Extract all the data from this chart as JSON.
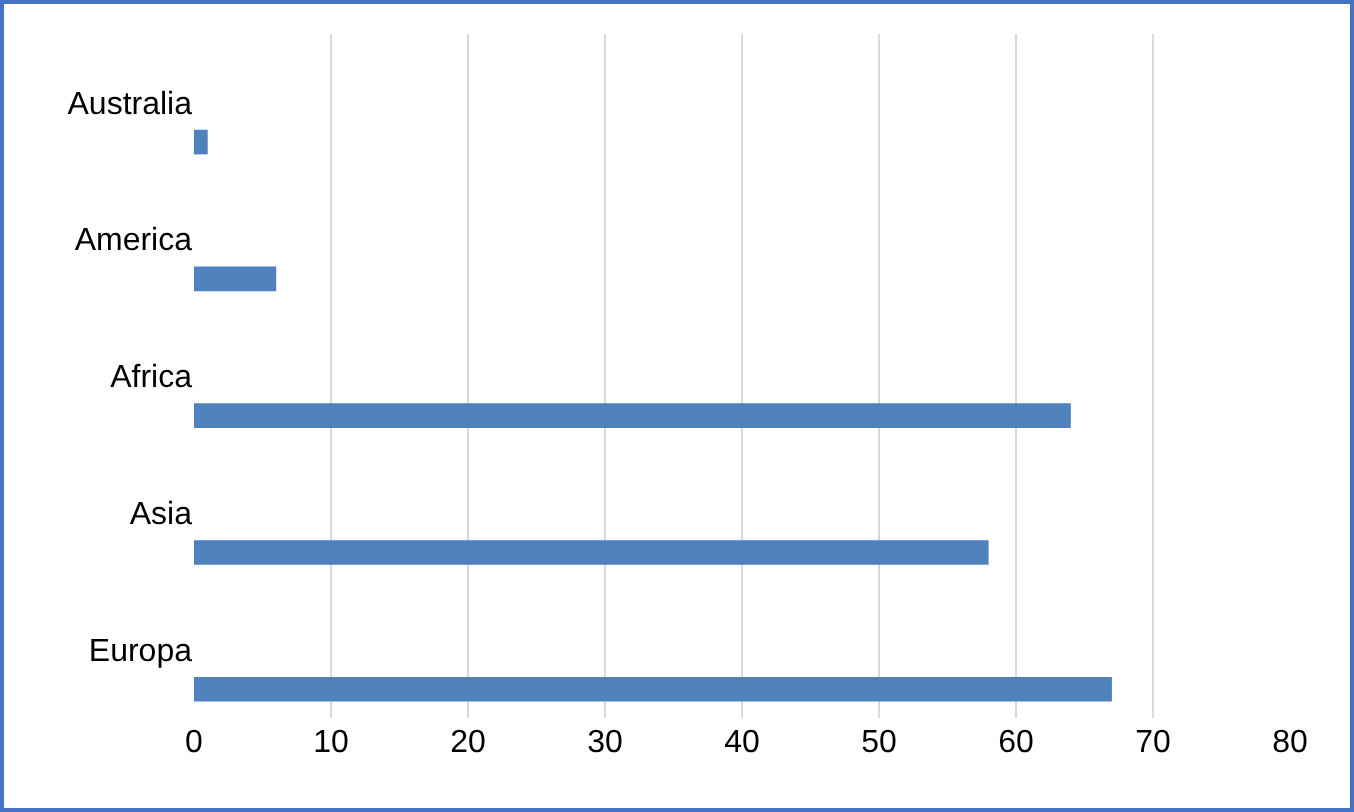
{
  "chart_data": {
    "type": "bar",
    "orientation": "horizontal",
    "categories": [
      "Australia",
      "America",
      "Africa",
      "Asia",
      "Europa"
    ],
    "values": [
      1,
      6,
      64,
      58,
      67
    ],
    "color": "#4f81bd",
    "xlim": [
      0,
      80
    ],
    "xticks": [
      0,
      10,
      20,
      30,
      40,
      50,
      60,
      70,
      80
    ],
    "grid": "x"
  }
}
